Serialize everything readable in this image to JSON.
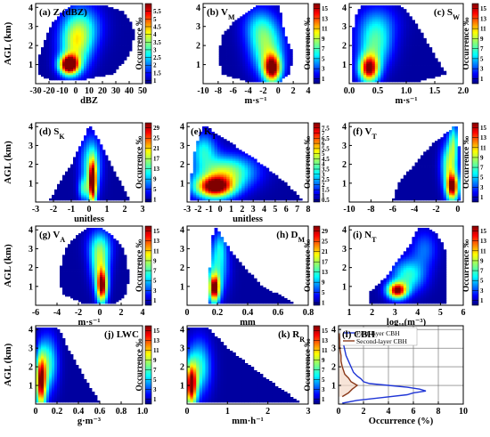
{
  "figure": {
    "y_axis_label": "AGL (km)",
    "occurrence_label": "Occurrence ‰",
    "height_ticks": [
      "1",
      "2",
      "3",
      "4"
    ],
    "ylim": [
      0,
      4.2
    ]
  },
  "chart_data": [
    {
      "id": "a",
      "type": "heatmap",
      "title": "(a) Z (dBZ)",
      "xlabel": "dBZ",
      "xlim": [
        -30,
        50
      ],
      "xticks": [
        -30,
        -20,
        -10,
        0,
        10,
        20,
        30,
        40,
        50
      ],
      "xtick_labels": [
        "-30",
        "-20",
        "-10",
        "0",
        "10",
        "20",
        "30",
        "40",
        "50"
      ],
      "colorbar_ticks": [
        "1",
        "1.5",
        "2",
        "2.5",
        "3",
        "3.5",
        "4",
        "4.5",
        "5",
        "5.5"
      ],
      "cb_range": [
        0.8,
        6
      ],
      "vmax": 5.8,
      "envelope": [
        [
          0.15,
          -18,
          0
        ],
        [
          0.5,
          -28,
          28
        ],
        [
          1.5,
          -27,
          40
        ],
        [
          2.5,
          -22,
          44
        ],
        [
          3.2,
          -17,
          42
        ],
        [
          3.8,
          -10,
          35
        ],
        [
          4.1,
          -2,
          22
        ]
      ],
      "hotspots": [
        {
          "x": -5,
          "y": 1.0,
          "sx": 5,
          "sy": 0.35,
          "v": 5.8
        },
        {
          "x": 0,
          "y": 2.0,
          "sx": 8,
          "sy": 0.9,
          "v": 2.5
        },
        {
          "x": 5,
          "y": 3.0,
          "sx": 10,
          "sy": 0.8,
          "v": 1.5
        }
      ]
    },
    {
      "id": "b",
      "type": "heatmap",
      "title": "(b) V",
      "title_sub": "M",
      "xlabel": "m·s⁻¹",
      "xlim": [
        -10,
        4
      ],
      "xticks": [
        -10,
        -8,
        -6,
        -4,
        -2,
        0,
        2,
        4
      ],
      "xtick_labels": [
        "-10",
        "-8",
        "-6",
        "-4",
        "-2",
        "0",
        "2",
        "4"
      ],
      "colorbar_ticks": [
        "1",
        "3",
        "5",
        "7",
        "9",
        "11",
        "13",
        "15"
      ],
      "cb_range": [
        0,
        16
      ],
      "vmax": 15,
      "envelope": [
        [
          0.1,
          -4,
          0.2
        ],
        [
          0.5,
          -7.5,
          1.5
        ],
        [
          1.5,
          -8,
          2
        ],
        [
          2.5,
          -7.5,
          1
        ],
        [
          3.2,
          -6,
          0.5
        ],
        [
          3.8,
          -4,
          0.3
        ],
        [
          4.1,
          -3,
          0
        ]
      ],
      "hotspots": [
        {
          "x": -0.8,
          "y": 0.8,
          "sx": 0.8,
          "sy": 0.5,
          "v": 15
        },
        {
          "x": -1.5,
          "y": 1.8,
          "sx": 1.5,
          "sy": 0.9,
          "v": 7
        },
        {
          "x": -2.5,
          "y": 3.0,
          "sx": 1.5,
          "sy": 0.7,
          "v": 4
        }
      ]
    },
    {
      "id": "c",
      "type": "heatmap",
      "title": "(c) S",
      "title_sub": "W",
      "xlabel": "m·s⁻¹",
      "xlim": [
        0,
        2
      ],
      "xticks": [
        0,
        0.5,
        1,
        1.5,
        2
      ],
      "xtick_labels": [
        "0.0",
        "0.5",
        "1.0",
        "1.5",
        "2.0"
      ],
      "colorbar_ticks": [
        "1",
        "3",
        "5",
        "7",
        "9",
        "11",
        "13",
        "15"
      ],
      "cb_range": [
        0,
        16
      ],
      "vmax": 15,
      "envelope": [
        [
          0.1,
          0.05,
          1.2
        ],
        [
          0.5,
          0.05,
          1.7
        ],
        [
          1.5,
          0.05,
          1.5
        ],
        [
          2.5,
          0.05,
          1.3
        ],
        [
          3.5,
          0.1,
          1.1
        ],
        [
          4.1,
          0.2,
          0.9
        ]
      ],
      "hotspots": [
        {
          "x": 0.35,
          "y": 0.8,
          "sx": 0.12,
          "sy": 0.5,
          "v": 15
        },
        {
          "x": 0.45,
          "y": 2.0,
          "sx": 0.2,
          "sy": 0.8,
          "v": 6
        },
        {
          "x": 0.5,
          "y": 3.2,
          "sx": 0.25,
          "sy": 0.7,
          "v": 3
        }
      ]
    },
    {
      "id": "d",
      "type": "heatmap",
      "title": "(d) S",
      "title_sub": "K",
      "xlabel": "unitless",
      "xlim": [
        -3,
        3
      ],
      "xticks": [
        -3,
        -2,
        -1,
        0,
        1,
        2,
        3
      ],
      "xtick_labels": [
        "-3",
        "-2",
        "-1",
        "0",
        "1",
        "2",
        "3"
      ],
      "colorbar_ticks": [
        "1",
        "5",
        "9",
        "13",
        "17",
        "21",
        "25",
        "29"
      ],
      "cb_range": [
        0,
        31
      ],
      "vmax": 30,
      "envelope": [
        [
          0.1,
          -2.2,
          2.3
        ],
        [
          1.0,
          -1.7,
          1.8
        ],
        [
          2.0,
          -1.0,
          1.2
        ],
        [
          3.0,
          -0.5,
          0.7
        ],
        [
          3.7,
          -0.15,
          0.3
        ],
        [
          4.0,
          -0.05,
          0.1
        ]
      ],
      "hotspots": [
        {
          "x": 0.2,
          "y": 1.0,
          "sx": 0.15,
          "sy": 0.8,
          "v": 30
        },
        {
          "x": 0.1,
          "y": 2.0,
          "sx": 0.4,
          "sy": 1.0,
          "v": 12
        },
        {
          "x": -0.3,
          "y": 0.7,
          "sx": 0.2,
          "sy": 0.4,
          "v": 10
        }
      ]
    },
    {
      "id": "e",
      "type": "heatmap",
      "title": "(e) K",
      "title_sub": "T",
      "xlabel": "unitless",
      "xlim": [
        -3,
        8
      ],
      "xticks": [
        -3,
        -2,
        -1,
        0,
        1,
        2,
        3,
        4,
        5,
        6,
        7,
        8
      ],
      "xtick_labels": [
        "-3",
        "-2",
        "-1",
        "0",
        "1",
        "2",
        "3",
        "4",
        "5",
        "6",
        "7",
        "8"
      ],
      "colorbar_ticks": [
        "0.5",
        "1",
        "1.5",
        "2",
        "2.5",
        "3",
        "3.5",
        "4",
        "4.5",
        "5",
        "5.5",
        "6",
        "6.5",
        "7",
        "7.5"
      ],
      "cb_range": [
        0.3,
        8
      ],
      "vmax": 7.5,
      "envelope": [
        [
          0.1,
          -2.7,
          7.5
        ],
        [
          1.0,
          -2.7,
          6.0
        ],
        [
          2.0,
          -2.5,
          3.8
        ],
        [
          3.0,
          -2.2,
          1.3
        ],
        [
          3.7,
          -1.8,
          -0.6
        ],
        [
          4.0,
          -1.5,
          -1.2
        ]
      ],
      "hotspots": [
        {
          "x": -0.5,
          "y": 0.8,
          "sx": 1.2,
          "sy": 0.4,
          "v": 7.5
        },
        {
          "x": 0.5,
          "y": 1.6,
          "sx": 1.8,
          "sy": 0.6,
          "v": 4
        },
        {
          "x": -1.5,
          "y": 2.8,
          "sx": 0.8,
          "sy": 0.6,
          "v": 2.5
        }
      ]
    },
    {
      "id": "f",
      "type": "heatmap",
      "title": "(f) V",
      "title_sub": "T",
      "xlabel": "",
      "xlim": [
        -10,
        0.5
      ],
      "xticks": [
        -10,
        -8,
        -6,
        -4,
        -2,
        0
      ],
      "xtick_labels": [
        "-10",
        "-8",
        "-6",
        "-4",
        "-2",
        "0"
      ],
      "colorbar_ticks": [
        "1",
        "3",
        "5",
        "7",
        "9",
        "11",
        "13",
        "15"
      ],
      "cb_range": [
        0,
        16
      ],
      "vmax": 15,
      "envelope": [
        [
          0.1,
          -6,
          0.2
        ],
        [
          1.0,
          -5.5,
          0.2
        ],
        [
          2.0,
          -4,
          0.2
        ],
        [
          3.0,
          -2.5,
          0.1
        ],
        [
          3.7,
          -1.0,
          0.1
        ],
        [
          4.0,
          -0.4,
          0
        ]
      ],
      "hotspots": [
        {
          "x": -0.5,
          "y": 0.8,
          "sx": 0.4,
          "sy": 0.5,
          "v": 15
        },
        {
          "x": -0.8,
          "y": 2.0,
          "sx": 0.5,
          "sy": 0.8,
          "v": 8
        },
        {
          "x": -0.4,
          "y": 3.2,
          "sx": 0.3,
          "sy": 0.7,
          "v": 6
        }
      ]
    },
    {
      "id": "g",
      "type": "heatmap",
      "title": "(g) V",
      "title_sub": "A",
      "xlabel": "m·s⁻¹",
      "xlim": [
        -6,
        4
      ],
      "xticks": [
        -6,
        -4,
        -2,
        0,
        2,
        4
      ],
      "xtick_labels": [
        "-6",
        "-4",
        "-2",
        "0",
        "2",
        "4"
      ],
      "colorbar_ticks": [
        "1",
        "3",
        "5",
        "7",
        "9",
        "11",
        "13",
        "15"
      ],
      "cb_range": [
        0,
        16
      ],
      "vmax": 15,
      "envelope": [
        [
          0.1,
          -1.5,
          1.5
        ],
        [
          0.6,
          -3.5,
          2.5
        ],
        [
          1.5,
          -3.8,
          2.7
        ],
        [
          2.5,
          -3.5,
          2.5
        ],
        [
          3.2,
          -3,
          2
        ],
        [
          3.8,
          -2,
          1.0
        ],
        [
          4.1,
          -1,
          0.2
        ]
      ],
      "hotspots": [
        {
          "x": 0.2,
          "y": 1.0,
          "sx": 0.35,
          "sy": 0.6,
          "v": 15
        },
        {
          "x": 0,
          "y": 2.2,
          "sx": 0.6,
          "sy": 0.8,
          "v": 7
        },
        {
          "x": 0,
          "y": 3.2,
          "sx": 0.8,
          "sy": 0.6,
          "v": 4
        }
      ]
    },
    {
      "id": "h",
      "type": "heatmap",
      "title": "(h) D",
      "title_sub": "M",
      "xlabel": "mm",
      "xlim": [
        0,
        0.8
      ],
      "xticks": [
        0,
        0.2,
        0.4,
        0.6,
        0.8
      ],
      "xtick_labels": [
        "0",
        "0.2",
        "0.4",
        "0.6",
        "0.8"
      ],
      "colorbar_ticks": [
        "1",
        "5",
        "9",
        "13",
        "17",
        "21",
        "25",
        "29"
      ],
      "cb_range": [
        0,
        31
      ],
      "vmax": 30,
      "envelope": [
        [
          0.1,
          0.14,
          0.72
        ],
        [
          0.5,
          0.14,
          0.62
        ],
        [
          1.0,
          0.14,
          0.5
        ],
        [
          2.0,
          0.15,
          0.38
        ],
        [
          3.0,
          0.16,
          0.28
        ],
        [
          3.7,
          0.17,
          0.22
        ],
        [
          4.1,
          0.18,
          0.2
        ]
      ],
      "hotspots": [
        {
          "x": 0.18,
          "y": 0.9,
          "sx": 0.025,
          "sy": 0.5,
          "v": 30
        },
        {
          "x": 0.2,
          "y": 2.0,
          "sx": 0.05,
          "sy": 0.9,
          "v": 10
        },
        {
          "x": 0.22,
          "y": 3.2,
          "sx": 0.03,
          "sy": 0.6,
          "v": 6
        }
      ]
    },
    {
      "id": "i",
      "type": "heatmap",
      "title": "(i) N",
      "title_sub": "T",
      "xlabel": "log₁₀(m⁻³)",
      "xlim": [
        1,
        6
      ],
      "xticks": [
        1,
        2,
        3,
        4,
        5,
        6
      ],
      "xtick_labels": [
        "1",
        "2",
        "3",
        "4",
        "5",
        "6"
      ],
      "colorbar_ticks": [
        "1",
        "3",
        "5",
        "7",
        "9",
        "11",
        "13",
        "15"
      ],
      "cb_range": [
        0,
        16
      ],
      "vmax": 15,
      "envelope": [
        [
          0.1,
          1.9,
          5.3
        ],
        [
          0.7,
          1.9,
          5.3
        ],
        [
          1.5,
          2.6,
          5.3
        ],
        [
          2.5,
          3.2,
          5.3
        ],
        [
          3.3,
          3.7,
          5.1
        ],
        [
          3.8,
          3.9,
          4.8
        ],
        [
          4.1,
          4.0,
          4.5
        ]
      ],
      "hotspots": [
        {
          "x": 3.1,
          "y": 0.8,
          "sx": 0.3,
          "sy": 0.3,
          "v": 15
        },
        {
          "x": 3.6,
          "y": 1.6,
          "sx": 0.5,
          "sy": 0.6,
          "v": 6
        },
        {
          "x": 4.3,
          "y": 3.0,
          "sx": 0.4,
          "sy": 0.7,
          "v": 3
        }
      ]
    },
    {
      "id": "j",
      "type": "heatmap",
      "title": "(j) LWC",
      "xlabel": "g·m⁻³",
      "xlim": [
        0,
        1
      ],
      "xticks": [
        0,
        0.2,
        0.4,
        0.6,
        0.8,
        1.0
      ],
      "xtick_labels": [
        "0",
        "0.2",
        "0.4",
        "0.6",
        "0.8",
        "1.0"
      ],
      "colorbar_ticks": [
        "1",
        "3",
        "5",
        "7",
        "9",
        "11",
        "13",
        "15"
      ],
      "cb_range": [
        0,
        16
      ],
      "vmax": 15,
      "envelope": [
        [
          0.1,
          0,
          0.6
        ],
        [
          1.0,
          0,
          0.5
        ],
        [
          2.0,
          0,
          0.4
        ],
        [
          3.0,
          0,
          0.3
        ],
        [
          3.7,
          0,
          0.25
        ],
        [
          4.1,
          0,
          0.2
        ]
      ],
      "hotspots": [
        {
          "x": 0.05,
          "y": 1.2,
          "sx": 0.035,
          "sy": 1.0,
          "v": 15
        },
        {
          "x": 0.12,
          "y": 2.2,
          "sx": 0.06,
          "sy": 1.0,
          "v": 6
        }
      ]
    },
    {
      "id": "k",
      "type": "heatmap",
      "title": "(k) R",
      "title_sub": "R",
      "xlabel": "mm·h⁻¹",
      "xlim": [
        0,
        3
      ],
      "xticks": [
        0,
        1,
        2,
        3
      ],
      "xtick_labels": [
        "0",
        "1",
        "2",
        "3"
      ],
      "colorbar_ticks": [
        "1",
        "3",
        "5",
        "7",
        "9",
        "11",
        "13",
        "15"
      ],
      "cb_range": [
        0,
        16
      ],
      "vmax": 15,
      "envelope": [
        [
          0.1,
          0,
          2.8
        ],
        [
          1.0,
          0,
          2.2
        ],
        [
          2.0,
          0,
          1.6
        ],
        [
          3.0,
          0,
          1.0
        ],
        [
          3.7,
          0,
          0.7
        ],
        [
          4.1,
          0,
          0.5
        ]
      ],
      "hotspots": [
        {
          "x": 0.1,
          "y": 1.0,
          "sx": 0.1,
          "sy": 0.8,
          "v": 15
        },
        {
          "x": 0.3,
          "y": 2.0,
          "sx": 0.2,
          "sy": 1.0,
          "v": 6
        }
      ]
    },
    {
      "id": "l",
      "type": "line",
      "title": "(l) CBH",
      "xlabel": "Occurrence (%)",
      "xlim": [
        0,
        10
      ],
      "xticks": [
        0,
        2,
        4,
        6,
        8,
        10
      ],
      "xtick_labels": [
        "0",
        "2",
        "4",
        "6",
        "8",
        "10"
      ],
      "series": [
        {
          "name": "First-layer CBH",
          "color": "#1f35d6",
          "y": [
            0.05,
            0.2,
            0.35,
            0.5,
            0.6,
            0.7,
            0.8,
            0.9,
            1.0,
            1.1,
            1.2,
            1.35,
            1.5,
            1.7,
            2.0,
            2.3,
            2.6,
            2.9,
            3.2,
            3.5,
            3.8
          ],
          "x": [
            0.3,
            1.5,
            3.5,
            5.5,
            6.0,
            7.0,
            6.5,
            5.5,
            4.0,
            2.5,
            2.0,
            1.8,
            1.5,
            1.2,
            1.0,
            0.8,
            0.6,
            0.5,
            0.4,
            0.3,
            0.2
          ]
        },
        {
          "name": "Second-layer CBH",
          "color": "#8b3a1a",
          "y": [
            0.4,
            0.6,
            0.8,
            1.0,
            1.2,
            1.4,
            1.6,
            1.8,
            2.0,
            2.3,
            2.6,
            3.0,
            3.4,
            3.8
          ],
          "x": [
            0.3,
            0.8,
            1.1,
            1.5,
            1.0,
            0.8,
            0.5,
            0.4,
            0.3,
            0.2,
            0.2,
            0.1,
            0.1,
            0.05
          ]
        }
      ]
    }
  ]
}
